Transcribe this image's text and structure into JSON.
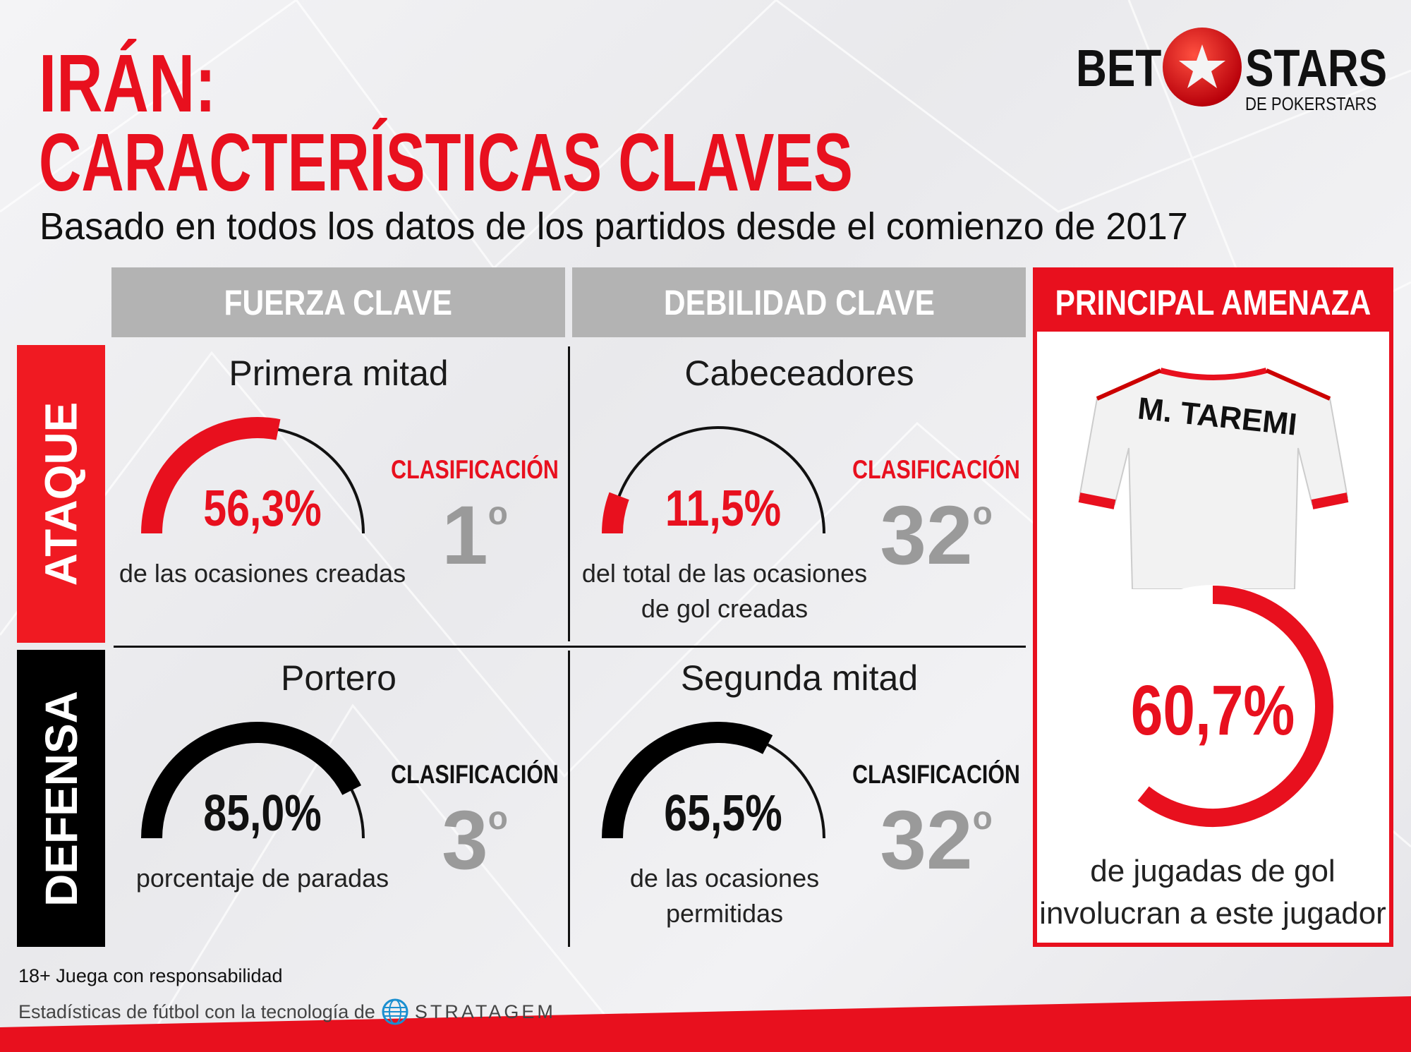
{
  "header": {
    "title_line1": "IRÁN:",
    "title_line2": "CARACTERÍSTICAS CLAVES",
    "subtitle": "Basado en todos los datos de los partidos desde el comienzo de 2017"
  },
  "logo": {
    "bet": "BET",
    "stars": "STARS",
    "sub": "DE POKERSTARS",
    "icon": "soccer-ball-star-icon"
  },
  "columns": [
    "FUERZA CLAVE",
    "DEBILIDAD CLAVE",
    "PRINCIPAL AMENAZA"
  ],
  "rows": [
    "ATAQUE",
    "DEFENSA"
  ],
  "colors": {
    "red": "#e8101e",
    "black": "#000000",
    "gray": "#b3b3b3",
    "rank_gray": "#9a9a9a"
  },
  "cells": [
    {
      "title": "Primera mitad",
      "value": 56.3,
      "value_label": "56,3%",
      "desc": [
        "de las ocasiones creadas"
      ],
      "rank_label": "CLASIFICACIÓN",
      "rank": "1",
      "rank_suffix": "o",
      "fill": "red"
    },
    {
      "title": "Cabeceadores",
      "value": 11.5,
      "value_label": "11,5%",
      "desc": [
        "del total de las ocasiones",
        "de gol creadas"
      ],
      "rank_label": "CLASIFICACIÓN",
      "rank": "32",
      "rank_suffix": "o",
      "fill": "red"
    },
    {
      "title": "Portero",
      "value": 85.0,
      "value_label": "85,0%",
      "desc": [
        "porcentaje de paradas"
      ],
      "rank_label": "CLASIFICACIÓN",
      "rank": "3",
      "rank_suffix": "o",
      "fill": "black"
    },
    {
      "title": "Segunda mitad",
      "value": 65.5,
      "value_label": "65,5%",
      "desc": [
        "de las ocasiones",
        "permitidas"
      ],
      "rank_label": "CLASIFICACIÓN",
      "rank": "32",
      "rank_suffix": "o",
      "fill": "black"
    }
  ],
  "threat": {
    "player": "M. TAREMI",
    "value": 60.7,
    "value_label": "60,7%",
    "desc": [
      "de jugadas de gol",
      "involucran a este jugador"
    ]
  },
  "footer": {
    "responsible": "18+ Juega con responsabilidad",
    "powered": "Estadísticas de fútbol con la tecnología de",
    "stratagem": "STRATAGEM"
  }
}
